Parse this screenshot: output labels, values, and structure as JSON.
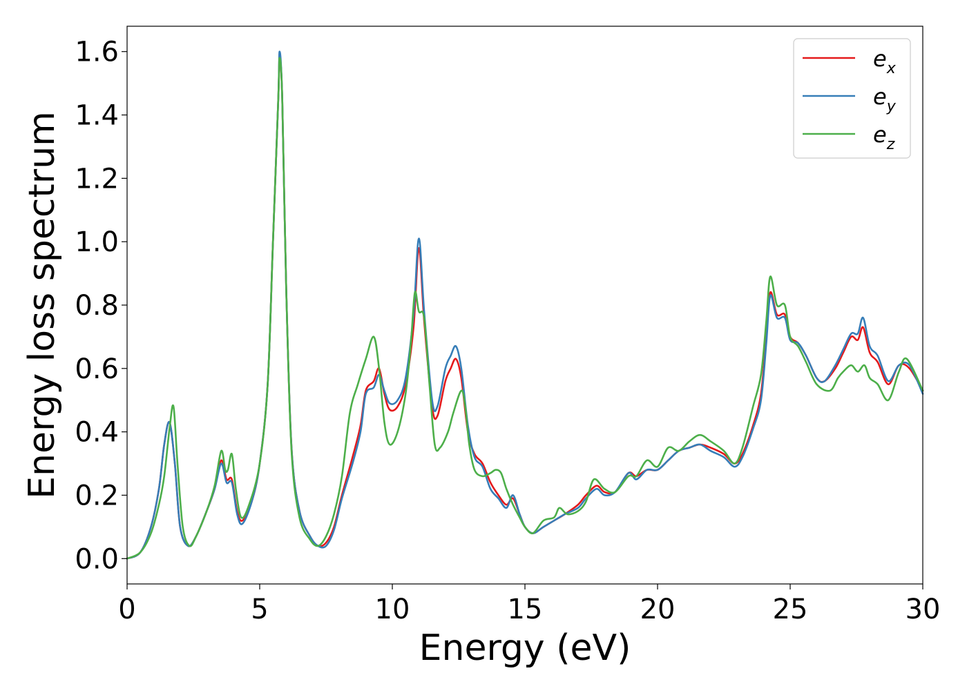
{
  "chart_data": {
    "type": "line",
    "title": "",
    "xlabel": "Energy (eV)",
    "ylabel": "Energy loss spectrum",
    "xlim": [
      0,
      30
    ],
    "ylim": [
      -0.08,
      1.68
    ],
    "x_ticks": [
      0,
      5,
      10,
      15,
      20,
      25,
      30
    ],
    "x_tick_labels": [
      "0",
      "5",
      "10",
      "15",
      "20",
      "25",
      "30"
    ],
    "y_ticks": [
      0.0,
      0.2,
      0.4,
      0.6,
      0.8,
      1.0,
      1.2,
      1.4,
      1.6
    ],
    "y_tick_labels": [
      "0.0",
      "0.2",
      "0.4",
      "0.6",
      "0.8",
      "1.0",
      "1.2",
      "1.4",
      "1.6"
    ],
    "grid": false,
    "legend_position": "top-right",
    "series": [
      {
        "name": "e",
        "subscript": "x",
        "color": "#e41a1c",
        "points": [
          [
            0,
            0.0
          ],
          [
            0.5,
            0.02
          ],
          [
            0.9,
            0.1
          ],
          [
            1.2,
            0.22
          ],
          [
            1.4,
            0.36
          ],
          [
            1.6,
            0.43
          ],
          [
            1.8,
            0.3
          ],
          [
            2.0,
            0.1
          ],
          [
            2.3,
            0.04
          ],
          [
            2.6,
            0.07
          ],
          [
            3.0,
            0.15
          ],
          [
            3.3,
            0.22
          ],
          [
            3.55,
            0.31
          ],
          [
            3.75,
            0.25
          ],
          [
            3.95,
            0.25
          ],
          [
            4.15,
            0.15
          ],
          [
            4.35,
            0.12
          ],
          [
            4.7,
            0.18
          ],
          [
            5.0,
            0.3
          ],
          [
            5.3,
            0.55
          ],
          [
            5.5,
            1.0
          ],
          [
            5.7,
            1.45
          ],
          [
            5.75,
            1.58
          ],
          [
            5.85,
            1.45
          ],
          [
            6.0,
            0.85
          ],
          [
            6.2,
            0.35
          ],
          [
            6.5,
            0.15
          ],
          [
            6.9,
            0.07
          ],
          [
            7.2,
            0.04
          ],
          [
            7.5,
            0.05
          ],
          [
            7.8,
            0.1
          ],
          [
            8.1,
            0.2
          ],
          [
            8.5,
            0.32
          ],
          [
            8.8,
            0.42
          ],
          [
            9.0,
            0.53
          ],
          [
            9.3,
            0.56
          ],
          [
            9.5,
            0.6
          ],
          [
            9.7,
            0.52
          ],
          [
            9.9,
            0.47
          ],
          [
            10.2,
            0.48
          ],
          [
            10.5,
            0.55
          ],
          [
            10.8,
            0.73
          ],
          [
            11.0,
            0.98
          ],
          [
            11.2,
            0.75
          ],
          [
            11.5,
            0.48
          ],
          [
            11.7,
            0.45
          ],
          [
            12.0,
            0.56
          ],
          [
            12.2,
            0.6
          ],
          [
            12.4,
            0.63
          ],
          [
            12.6,
            0.57
          ],
          [
            12.85,
            0.4
          ],
          [
            13.1,
            0.33
          ],
          [
            13.4,
            0.3
          ],
          [
            13.7,
            0.24
          ],
          [
            14.0,
            0.2
          ],
          [
            14.3,
            0.17
          ],
          [
            14.55,
            0.19
          ],
          [
            14.8,
            0.14
          ],
          [
            15.0,
            0.1
          ],
          [
            15.3,
            0.08
          ],
          [
            15.7,
            0.1
          ],
          [
            16.1,
            0.12
          ],
          [
            16.5,
            0.14
          ],
          [
            17.0,
            0.17
          ],
          [
            17.3,
            0.2
          ],
          [
            17.7,
            0.23
          ],
          [
            18.0,
            0.21
          ],
          [
            18.4,
            0.21
          ],
          [
            18.9,
            0.27
          ],
          [
            19.2,
            0.26
          ],
          [
            19.6,
            0.28
          ],
          [
            20.0,
            0.28
          ],
          [
            20.4,
            0.31
          ],
          [
            20.8,
            0.34
          ],
          [
            21.2,
            0.35
          ],
          [
            21.6,
            0.36
          ],
          [
            22.0,
            0.35
          ],
          [
            22.5,
            0.33
          ],
          [
            22.9,
            0.3
          ],
          [
            23.2,
            0.33
          ],
          [
            23.6,
            0.42
          ],
          [
            23.9,
            0.52
          ],
          [
            24.1,
            0.7
          ],
          [
            24.25,
            0.84
          ],
          [
            24.5,
            0.77
          ],
          [
            24.8,
            0.77
          ],
          [
            25.0,
            0.7
          ],
          [
            25.3,
            0.68
          ],
          [
            25.6,
            0.64
          ],
          [
            26.0,
            0.57
          ],
          [
            26.3,
            0.56
          ],
          [
            26.7,
            0.6
          ],
          [
            27.0,
            0.65
          ],
          [
            27.3,
            0.7
          ],
          [
            27.55,
            0.69
          ],
          [
            27.75,
            0.73
          ],
          [
            28.0,
            0.65
          ],
          [
            28.3,
            0.62
          ],
          [
            28.7,
            0.55
          ],
          [
            29.1,
            0.61
          ],
          [
            29.5,
            0.6
          ],
          [
            30.0,
            0.53
          ]
        ]
      },
      {
        "name": "e",
        "subscript": "y",
        "color": "#377eb8",
        "points": [
          [
            0,
            0.0
          ],
          [
            0.5,
            0.02
          ],
          [
            0.9,
            0.1
          ],
          [
            1.2,
            0.22
          ],
          [
            1.4,
            0.36
          ],
          [
            1.6,
            0.43
          ],
          [
            1.8,
            0.3
          ],
          [
            2.0,
            0.1
          ],
          [
            2.3,
            0.04
          ],
          [
            2.6,
            0.07
          ],
          [
            3.0,
            0.15
          ],
          [
            3.3,
            0.22
          ],
          [
            3.55,
            0.3
          ],
          [
            3.75,
            0.24
          ],
          [
            3.95,
            0.24
          ],
          [
            4.15,
            0.14
          ],
          [
            4.35,
            0.11
          ],
          [
            4.7,
            0.18
          ],
          [
            5.0,
            0.3
          ],
          [
            5.3,
            0.55
          ],
          [
            5.5,
            1.0
          ],
          [
            5.7,
            1.45
          ],
          [
            5.75,
            1.6
          ],
          [
            5.85,
            1.45
          ],
          [
            6.0,
            0.85
          ],
          [
            6.2,
            0.35
          ],
          [
            6.5,
            0.15
          ],
          [
            6.9,
            0.07
          ],
          [
            7.2,
            0.04
          ],
          [
            7.5,
            0.04
          ],
          [
            7.8,
            0.09
          ],
          [
            8.1,
            0.19
          ],
          [
            8.5,
            0.3
          ],
          [
            8.8,
            0.4
          ],
          [
            9.0,
            0.52
          ],
          [
            9.3,
            0.54
          ],
          [
            9.5,
            0.58
          ],
          [
            9.7,
            0.53
          ],
          [
            9.9,
            0.49
          ],
          [
            10.2,
            0.5
          ],
          [
            10.5,
            0.57
          ],
          [
            10.8,
            0.77
          ],
          [
            11.0,
            1.01
          ],
          [
            11.2,
            0.78
          ],
          [
            11.5,
            0.5
          ],
          [
            11.7,
            0.48
          ],
          [
            12.0,
            0.6
          ],
          [
            12.2,
            0.64
          ],
          [
            12.4,
            0.67
          ],
          [
            12.6,
            0.6
          ],
          [
            12.85,
            0.42
          ],
          [
            13.1,
            0.32
          ],
          [
            13.4,
            0.29
          ],
          [
            13.7,
            0.22
          ],
          [
            14.0,
            0.19
          ],
          [
            14.3,
            0.16
          ],
          [
            14.55,
            0.2
          ],
          [
            14.8,
            0.14
          ],
          [
            15.0,
            0.1
          ],
          [
            15.3,
            0.08
          ],
          [
            15.7,
            0.1
          ],
          [
            16.1,
            0.12
          ],
          [
            16.5,
            0.14
          ],
          [
            17.0,
            0.16
          ],
          [
            17.3,
            0.19
          ],
          [
            17.7,
            0.22
          ],
          [
            18.0,
            0.2
          ],
          [
            18.4,
            0.21
          ],
          [
            18.9,
            0.27
          ],
          [
            19.2,
            0.25
          ],
          [
            19.6,
            0.28
          ],
          [
            20.0,
            0.28
          ],
          [
            20.4,
            0.31
          ],
          [
            20.8,
            0.34
          ],
          [
            21.2,
            0.35
          ],
          [
            21.6,
            0.36
          ],
          [
            22.0,
            0.34
          ],
          [
            22.5,
            0.32
          ],
          [
            22.9,
            0.29
          ],
          [
            23.2,
            0.32
          ],
          [
            23.6,
            0.41
          ],
          [
            23.9,
            0.5
          ],
          [
            24.1,
            0.68
          ],
          [
            24.25,
            0.83
          ],
          [
            24.5,
            0.76
          ],
          [
            24.8,
            0.76
          ],
          [
            25.0,
            0.69
          ],
          [
            25.3,
            0.68
          ],
          [
            25.6,
            0.64
          ],
          [
            26.0,
            0.57
          ],
          [
            26.3,
            0.56
          ],
          [
            26.7,
            0.61
          ],
          [
            27.0,
            0.66
          ],
          [
            27.3,
            0.71
          ],
          [
            27.55,
            0.71
          ],
          [
            27.75,
            0.76
          ],
          [
            28.0,
            0.67
          ],
          [
            28.3,
            0.64
          ],
          [
            28.7,
            0.56
          ],
          [
            29.1,
            0.61
          ],
          [
            29.5,
            0.61
          ],
          [
            30.0,
            0.52
          ]
        ]
      },
      {
        "name": "e",
        "subscript": "z",
        "color": "#4daf4a",
        "points": [
          [
            0,
            0.0
          ],
          [
            0.5,
            0.02
          ],
          [
            0.9,
            0.08
          ],
          [
            1.2,
            0.17
          ],
          [
            1.4,
            0.26
          ],
          [
            1.6,
            0.41
          ],
          [
            1.75,
            0.48
          ],
          [
            1.9,
            0.3
          ],
          [
            2.1,
            0.1
          ],
          [
            2.35,
            0.04
          ],
          [
            2.6,
            0.07
          ],
          [
            3.0,
            0.15
          ],
          [
            3.3,
            0.23
          ],
          [
            3.55,
            0.34
          ],
          [
            3.7,
            0.28
          ],
          [
            3.8,
            0.28
          ],
          [
            3.95,
            0.33
          ],
          [
            4.1,
            0.22
          ],
          [
            4.3,
            0.13
          ],
          [
            4.6,
            0.17
          ],
          [
            5.0,
            0.3
          ],
          [
            5.3,
            0.55
          ],
          [
            5.5,
            1.0
          ],
          [
            5.7,
            1.45
          ],
          [
            5.75,
            1.58
          ],
          [
            5.85,
            1.45
          ],
          [
            6.0,
            0.85
          ],
          [
            6.2,
            0.34
          ],
          [
            6.5,
            0.13
          ],
          [
            6.9,
            0.06
          ],
          [
            7.2,
            0.04
          ],
          [
            7.5,
            0.07
          ],
          [
            7.8,
            0.14
          ],
          [
            8.1,
            0.26
          ],
          [
            8.4,
            0.46
          ],
          [
            8.7,
            0.55
          ],
          [
            9.0,
            0.63
          ],
          [
            9.3,
            0.7
          ],
          [
            9.5,
            0.6
          ],
          [
            9.7,
            0.43
          ],
          [
            9.9,
            0.36
          ],
          [
            10.2,
            0.4
          ],
          [
            10.5,
            0.52
          ],
          [
            10.7,
            0.68
          ],
          [
            10.85,
            0.84
          ],
          [
            11.0,
            0.78
          ],
          [
            11.2,
            0.76
          ],
          [
            11.4,
            0.55
          ],
          [
            11.6,
            0.36
          ],
          [
            11.8,
            0.35
          ],
          [
            12.1,
            0.4
          ],
          [
            12.3,
            0.46
          ],
          [
            12.6,
            0.53
          ],
          [
            12.75,
            0.48
          ],
          [
            12.9,
            0.36
          ],
          [
            13.1,
            0.28
          ],
          [
            13.4,
            0.26
          ],
          [
            13.7,
            0.27
          ],
          [
            13.9,
            0.28
          ],
          [
            14.1,
            0.27
          ],
          [
            14.3,
            0.22
          ],
          [
            14.55,
            0.17
          ],
          [
            14.8,
            0.13
          ],
          [
            15.0,
            0.1
          ],
          [
            15.3,
            0.08
          ],
          [
            15.7,
            0.12
          ],
          [
            16.1,
            0.13
          ],
          [
            16.3,
            0.16
          ],
          [
            16.6,
            0.14
          ],
          [
            17.0,
            0.15
          ],
          [
            17.3,
            0.18
          ],
          [
            17.6,
            0.25
          ],
          [
            18.0,
            0.22
          ],
          [
            18.4,
            0.21
          ],
          [
            18.9,
            0.26
          ],
          [
            19.2,
            0.26
          ],
          [
            19.6,
            0.31
          ],
          [
            20.0,
            0.29
          ],
          [
            20.4,
            0.35
          ],
          [
            20.8,
            0.34
          ],
          [
            21.2,
            0.37
          ],
          [
            21.6,
            0.39
          ],
          [
            22.0,
            0.37
          ],
          [
            22.5,
            0.34
          ],
          [
            22.9,
            0.3
          ],
          [
            23.2,
            0.35
          ],
          [
            23.6,
            0.48
          ],
          [
            23.9,
            0.58
          ],
          [
            24.1,
            0.75
          ],
          [
            24.25,
            0.89
          ],
          [
            24.5,
            0.8
          ],
          [
            24.8,
            0.8
          ],
          [
            25.0,
            0.7
          ],
          [
            25.3,
            0.67
          ],
          [
            25.6,
            0.62
          ],
          [
            26.0,
            0.55
          ],
          [
            26.5,
            0.53
          ],
          [
            26.8,
            0.57
          ],
          [
            27.0,
            0.59
          ],
          [
            27.3,
            0.61
          ],
          [
            27.55,
            0.59
          ],
          [
            27.8,
            0.61
          ],
          [
            28.0,
            0.57
          ],
          [
            28.3,
            0.55
          ],
          [
            28.7,
            0.5
          ],
          [
            29.1,
            0.59
          ],
          [
            29.4,
            0.63
          ],
          [
            30.0,
            0.53
          ]
        ]
      }
    ]
  }
}
